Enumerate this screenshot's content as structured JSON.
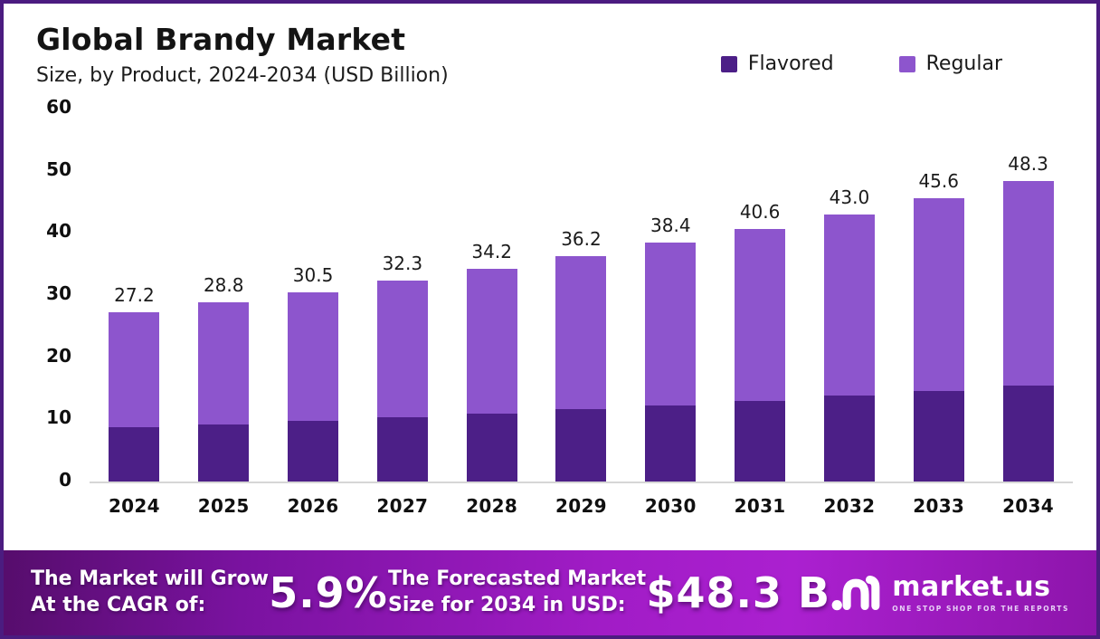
{
  "header": {
    "title": "Global Brandy Market",
    "subtitle": "Size, by Product, 2024-2034 (USD Billion)"
  },
  "legend": {
    "items": [
      {
        "label": "Flavored",
        "color": "#4c1f87"
      },
      {
        "label": "Regular",
        "color": "#8d55cd"
      }
    ]
  },
  "chart_data": {
    "type": "bar",
    "stacked": true,
    "categories": [
      "2024",
      "2025",
      "2026",
      "2027",
      "2028",
      "2029",
      "2030",
      "2031",
      "2032",
      "2033",
      "2034"
    ],
    "series": [
      {
        "name": "Flavored",
        "color": "#4c1f87",
        "values": [
          8.7,
          9.2,
          9.8,
          10.3,
          10.9,
          11.6,
          12.3,
          13.0,
          13.8,
          14.6,
          15.5
        ]
      },
      {
        "name": "Regular",
        "color": "#8d55cd",
        "values": [
          18.5,
          19.6,
          20.7,
          22.0,
          23.3,
          24.6,
          26.1,
          27.6,
          29.2,
          31.0,
          32.8
        ]
      }
    ],
    "totals": [
      27.2,
      28.8,
      30.5,
      32.3,
      34.2,
      36.2,
      38.4,
      40.6,
      43.0,
      45.6,
      48.3
    ],
    "total_labels": [
      "27.2",
      "28.8",
      "30.5",
      "32.3",
      "34.2",
      "36.2",
      "38.4",
      "40.6",
      "43.0",
      "45.6",
      "48.3"
    ],
    "title": "Global Brandy Market Size, by Product, 2024-2034 (USD Billion)",
    "xlabel": "",
    "ylabel": "",
    "ylim": [
      0,
      60
    ],
    "ytick_step": 10,
    "grid": false,
    "legend_position": "top-right"
  },
  "footer": {
    "left_line1": "The Market will Grow",
    "left_line2": "At the CAGR of:",
    "cagr_value": "5.9%",
    "right_line1": "The Forecasted Market",
    "right_line2": "Size for 2034 in USD:",
    "forecast_value": "$48.3 B",
    "brand_name": "market.us",
    "brand_tagline": "ONE STOP SHOP FOR THE REPORTS"
  }
}
